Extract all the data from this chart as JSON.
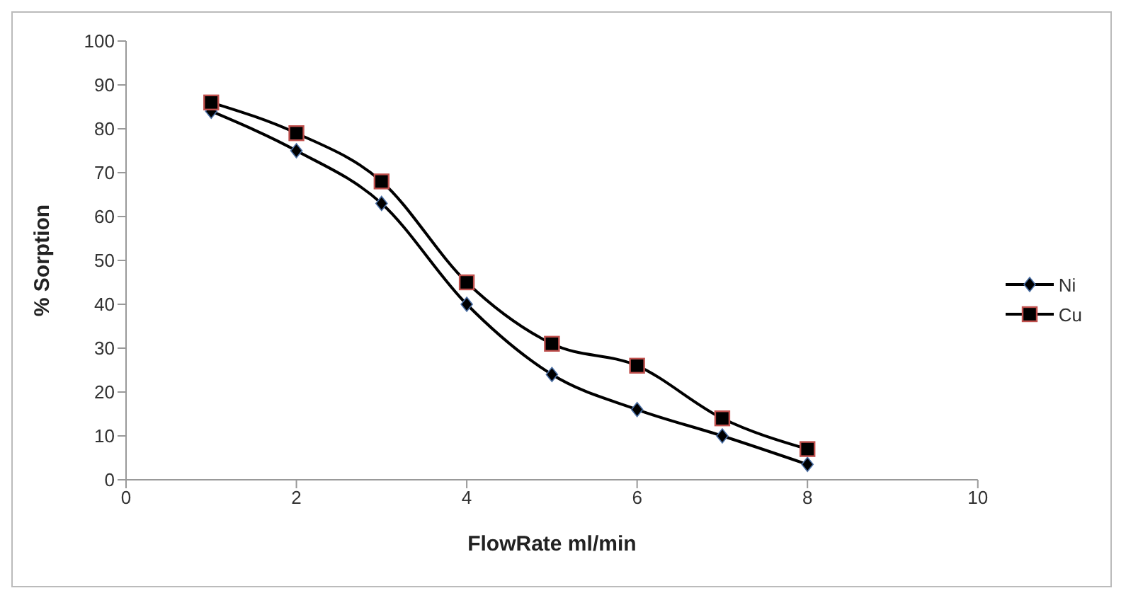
{
  "chart_data": {
    "type": "line",
    "xlabel": "FlowRate ml/min",
    "ylabel": "% Sorption",
    "x": [
      1,
      2,
      3,
      4,
      5,
      6,
      7,
      8
    ],
    "series": [
      {
        "name": "Ni",
        "color": "#000000",
        "marker": "diamond",
        "values": [
          84,
          75,
          63,
          40,
          24,
          16,
          10,
          3.5
        ]
      },
      {
        "name": "Cu",
        "color": "#000000",
        "marker": "square",
        "values": [
          86,
          79,
          68,
          45,
          31,
          26,
          14,
          7
        ]
      }
    ],
    "xlim": [
      0,
      10
    ],
    "xticks": [
      0,
      2,
      4,
      6,
      8,
      10
    ],
    "ylim": [
      0,
      100
    ],
    "yticks": [
      0,
      10,
      20,
      30,
      40,
      50,
      60,
      70,
      80,
      90,
      100
    ],
    "grid": false,
    "legend": "right"
  }
}
